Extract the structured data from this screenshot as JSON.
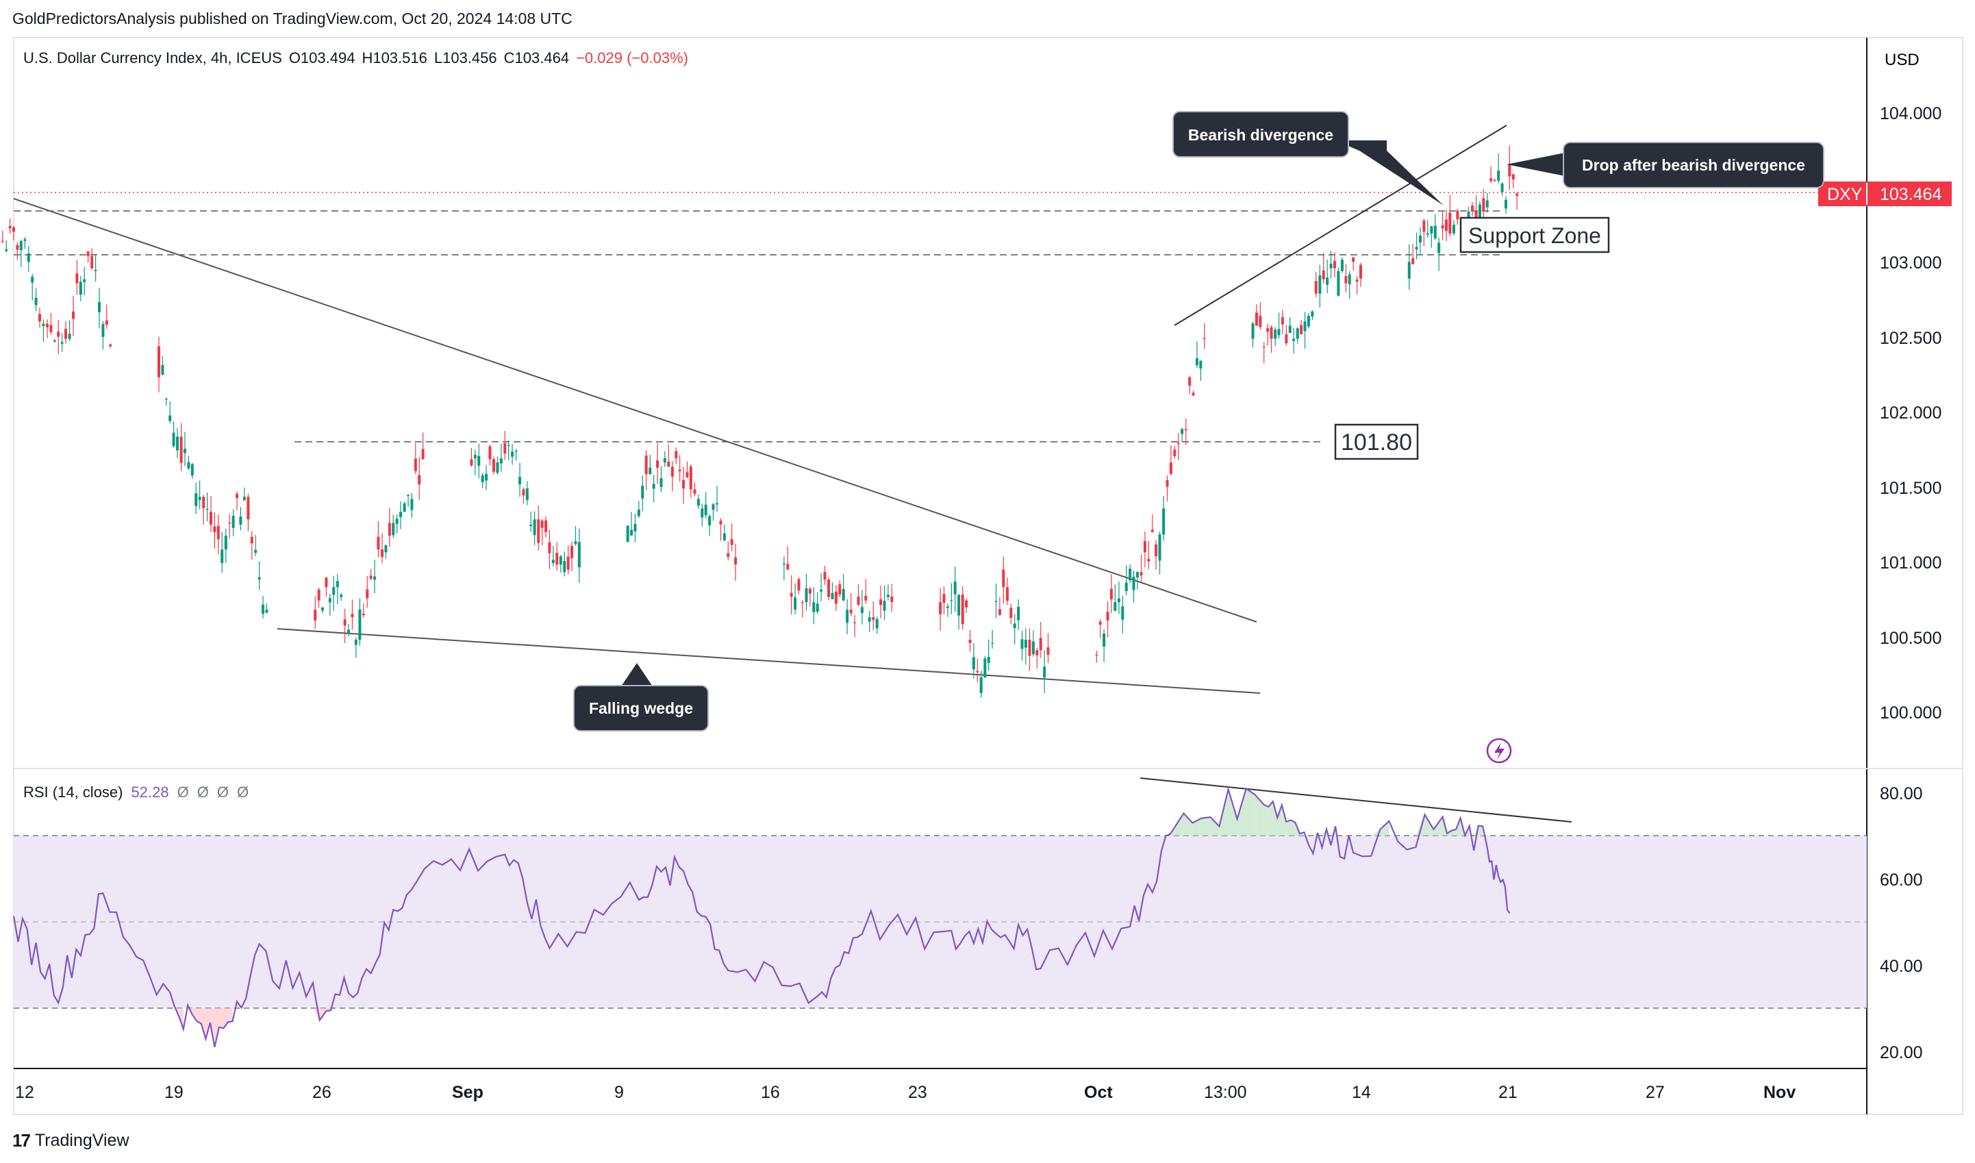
{
  "header": {
    "published_line": "GoldPredictorsAnalysis published on TradingView.com, Oct 20, 2024 14:08 UTC"
  },
  "footer": {
    "brand": "TradingView",
    "brand_mark": "17"
  },
  "price_pane": {
    "legend": {
      "symbol_text": "U.S. Dollar Currency Index, 4h, ICEUS",
      "open": "O103.494",
      "high": "H103.516",
      "low": "L103.456",
      "close": "C103.464",
      "change": "−0.029 (−0.03%)"
    },
    "currency": "USD",
    "ticker_label": "DXY",
    "last_price_label": "103.464",
    "last_price": 103.464,
    "y_ticks": [
      "104.000",
      "103.500",
      "103.000",
      "102.500",
      "102.000",
      "101.500",
      "101.000",
      "100.500",
      "100.000"
    ],
    "annotations": {
      "bearish_divergence": "Bearish divergence",
      "drop_after": "Drop after bearish divergence",
      "support_zone": "Support Zone",
      "level_label": "101.80",
      "falling_wedge": "Falling wedge"
    }
  },
  "rsi_pane": {
    "legend_name": "RSI (14, close)",
    "legend_value": "52.28",
    "legend_extras": [
      "Ø",
      "Ø",
      "Ø",
      "Ø"
    ],
    "y_ticks": [
      "80.00",
      "60.00",
      "40.00",
      "20.00"
    ]
  },
  "x_axis": {
    "labels": [
      "12",
      "19",
      "26",
      "Sep",
      "9",
      "16",
      "23",
      "Oct",
      "13:00",
      "14",
      "21",
      "27",
      "Nov"
    ]
  },
  "colors": {
    "up": "#089981",
    "down": "#f23645",
    "rsi_line": "#7e57c2",
    "rsi_band": "#ede7f6",
    "annotation_bg": "#2a2e39",
    "last_price_bg": "#f23645"
  },
  "chart_data": [
    {
      "type": "candlestick",
      "title": "U.S. Dollar Currency Index, 4h, ICEUS",
      "ylim": [
        99.6,
        104.3
      ],
      "y_scale": "linear",
      "grid": false,
      "x_range": [
        "2024-08-12",
        "2024-11-03"
      ],
      "approx_daily_closes": {
        "x": [
          "2024-08-12",
          "2024-08-13",
          "2024-08-14",
          "2024-08-15",
          "2024-08-16",
          "2024-08-19",
          "2024-08-20",
          "2024-08-21",
          "2024-08-22",
          "2024-08-23",
          "2024-08-26",
          "2024-08-27",
          "2024-08-28",
          "2024-08-29",
          "2024-08-30",
          "2024-09-02",
          "2024-09-03",
          "2024-09-04",
          "2024-09-05",
          "2024-09-06",
          "2024-09-09",
          "2024-09-10",
          "2024-09-11",
          "2024-09-12",
          "2024-09-13",
          "2024-09-16",
          "2024-09-17",
          "2024-09-18",
          "2024-09-19",
          "2024-09-20",
          "2024-09-23",
          "2024-09-24",
          "2024-09-25",
          "2024-09-26",
          "2024-09-27",
          "2024-09-30",
          "2024-10-01",
          "2024-10-02",
          "2024-10-03",
          "2024-10-04",
          "2024-10-07",
          "2024-10-08",
          "2024-10-09",
          "2024-10-10",
          "2024-10-11",
          "2024-10-14",
          "2024-10-15",
          "2024-10-16",
          "2024-10-17",
          "2024-10-18"
        ],
        "close": [
          103.15,
          102.6,
          102.5,
          103.05,
          102.45,
          101.85,
          101.45,
          101.1,
          101.45,
          100.7,
          100.85,
          100.5,
          101.1,
          101.35,
          101.7,
          101.7,
          101.75,
          101.3,
          101.0,
          101.15,
          101.6,
          101.65,
          101.5,
          101.4,
          101.0,
          100.75,
          100.9,
          100.7,
          100.65,
          100.75,
          100.8,
          100.25,
          100.85,
          100.5,
          100.4,
          100.75,
          100.95,
          101.2,
          101.9,
          102.5,
          102.5,
          102.5,
          102.8,
          102.95,
          102.9,
          103.2,
          103.2,
          103.35,
          103.55,
          103.45
        ]
      },
      "levels": [
        {
          "label": "101.80",
          "value": 101.8,
          "style": "dashed"
        },
        {
          "label": "Support Zone",
          "from": 103.05,
          "to": 103.35,
          "style": "dashed"
        },
        {
          "label": "DXY",
          "value": 103.464,
          "style": "dotted"
        }
      ],
      "trendlines": [
        {
          "from": [
            "2024-08-12",
            103.35
          ],
          "to": [
            "2024-10-10",
            100.6
          ]
        },
        {
          "from": [
            "2024-08-23",
            100.55
          ],
          "to": [
            "2024-10-10",
            100.12
          ]
        },
        {
          "from": [
            "2024-10-07",
            102.65
          ],
          "to": [
            "2024-10-21",
            103.9
          ]
        }
      ]
    },
    {
      "type": "line",
      "title": "RSI (14, close)",
      "ylim": [
        15,
        85
      ],
      "bands": [
        30,
        50,
        70
      ],
      "x": [
        "2024-08-12",
        "2024-08-14",
        "2024-08-16",
        "2024-08-19",
        "2024-08-21",
        "2024-08-23",
        "2024-08-26",
        "2024-08-28",
        "2024-08-30",
        "2024-09-03",
        "2024-09-05",
        "2024-09-09",
        "2024-09-11",
        "2024-09-13",
        "2024-09-17",
        "2024-09-19",
        "2024-09-23",
        "2024-09-25",
        "2024-09-27",
        "2024-10-01",
        "2024-10-03",
        "2024-10-07",
        "2024-10-09",
        "2024-10-11",
        "2024-10-15",
        "2024-10-17",
        "2024-10-18"
      ],
      "values": [
        50,
        35,
        55,
        32,
        22,
        42,
        30,
        40,
        62,
        66,
        45,
        58,
        62,
        40,
        32,
        50,
        45,
        50,
        42,
        48,
        72,
        80,
        70,
        68,
        72,
        68,
        52
      ]
    }
  ]
}
